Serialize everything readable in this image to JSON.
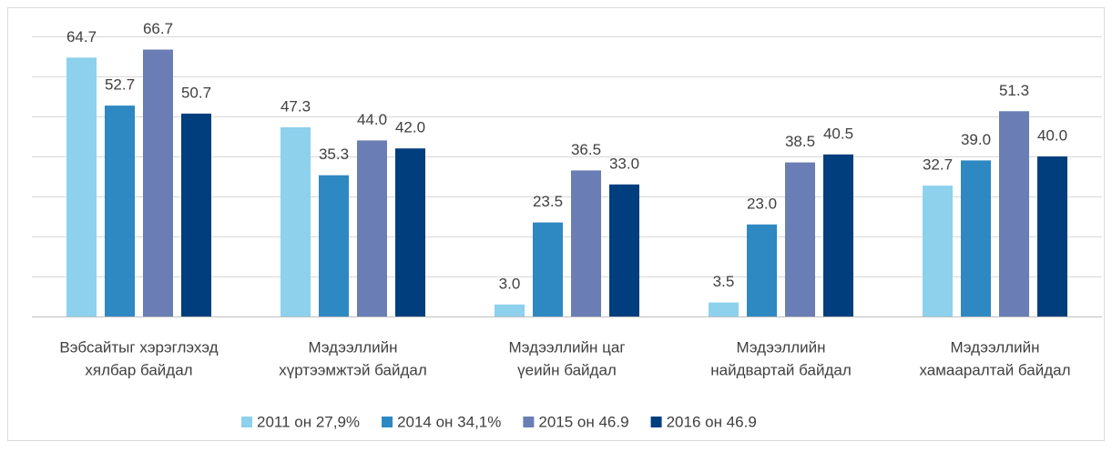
{
  "chart_data": {
    "type": "bar",
    "categories": [
      [
        "Вэбсайтыг хэрэглэхэд",
        "хялбар байдал"
      ],
      [
        "Мэдээллийн",
        "хүртээмжтэй байдал"
      ],
      [
        "Мэдээллийн цаг",
        "үеийн байдал"
      ],
      [
        "Мэдээллийн",
        "найдвартай байдал"
      ],
      [
        "Мэдээллийн",
        "хамааралтай байдал"
      ]
    ],
    "series": [
      {
        "name": "2011 он 27,9%",
        "color": "#8dd1ec",
        "values": [
          64.7,
          47.3,
          3.0,
          3.5,
          32.7
        ],
        "value_labels": [
          "64.7",
          "47.3",
          "3.0",
          "3.5",
          "32.7"
        ]
      },
      {
        "name": "2014 он 34,1%",
        "color": "#2e88c2",
        "values": [
          52.7,
          35.3,
          23.5,
          23.0,
          39.0
        ],
        "value_labels": [
          "52.7",
          "35.3",
          "23.5",
          "23.0",
          "39.0"
        ]
      },
      {
        "name": "2015 он 46.9",
        "color": "#6a7db4",
        "values": [
          66.7,
          44.0,
          36.5,
          38.5,
          51.3
        ],
        "value_labels": [
          "66.7",
          "44.0",
          "36.5",
          "38.5",
          "51.3"
        ]
      },
      {
        "name": "2016 он 46.9",
        "color": "#003e7e",
        "values": [
          50.7,
          42.0,
          33.0,
          40.5,
          40.0
        ],
        "value_labels": [
          "50.7",
          "42.0",
          "33.0",
          "40.5",
          "40.0"
        ]
      }
    ],
    "ylim": [
      0,
      70
    ],
    "yticks": [
      0,
      10,
      20,
      30,
      40,
      50,
      60,
      70
    ],
    "grid": true,
    "legend": "bottom"
  }
}
